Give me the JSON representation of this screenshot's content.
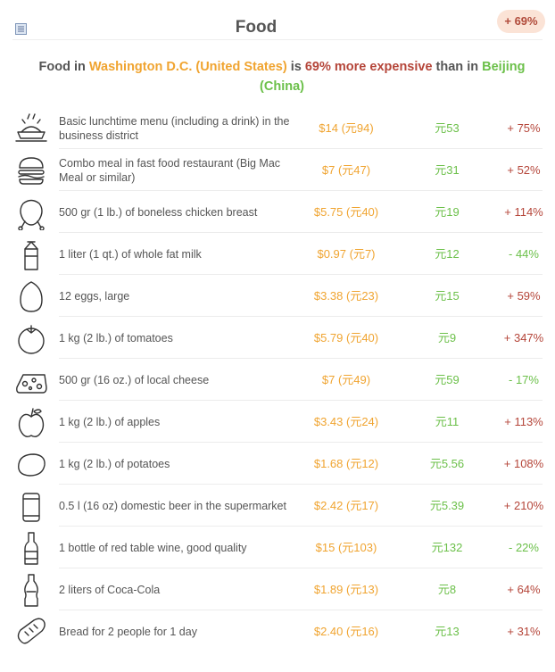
{
  "header": {
    "title": "Food",
    "badge": "+ 69%",
    "menu_icon": "list-icon"
  },
  "summary": {
    "prefix": "Food in ",
    "city1": "Washington D.C. (United States)",
    "mid1": " is ",
    "pct": "69% more expensive",
    "mid2": " than in ",
    "city2": "Beijing (China)"
  },
  "colors": {
    "orange": "#f0a430",
    "green": "#6cc04a",
    "red": "#b5463a",
    "badge_bg": "#fbe3d6"
  },
  "items": [
    {
      "icon": "meal-plate-icon",
      "label": "Basic lunchtime menu (including a drink) in the business district",
      "price": "$14 (元94)",
      "local": "元53",
      "diff": "+ 75%",
      "dir": "up"
    },
    {
      "icon": "burger-icon",
      "label": "Combo meal in fast food restaurant (Big Mac Meal or similar)",
      "price": "$7 (元47)",
      "local": "元31",
      "diff": "+ 52%",
      "dir": "up"
    },
    {
      "icon": "chicken-icon",
      "label": "500 gr (1 lb.) of boneless chicken breast",
      "price": "$5.75 (元40)",
      "local": "元19",
      "diff": "+ 114%",
      "dir": "up"
    },
    {
      "icon": "milk-carton-icon",
      "label": "1 liter (1 qt.) of whole fat milk",
      "price": "$0.97 (元7)",
      "local": "元12",
      "diff": "- 44%",
      "dir": "down"
    },
    {
      "icon": "egg-icon",
      "label": "12 eggs, large",
      "price": "$3.38 (元23)",
      "local": "元15",
      "diff": "+ 59%",
      "dir": "up"
    },
    {
      "icon": "tomato-icon",
      "label": "1 kg (2 lb.) of tomatoes",
      "price": "$5.79 (元40)",
      "local": "元9",
      "diff": "+ 347%",
      "dir": "up"
    },
    {
      "icon": "cheese-icon",
      "label": "500 gr (16 oz.) of local cheese",
      "price": "$7 (元49)",
      "local": "元59",
      "diff": "- 17%",
      "dir": "down"
    },
    {
      "icon": "apple-icon",
      "label": "1 kg (2 lb.) of apples",
      "price": "$3.43 (元24)",
      "local": "元11",
      "diff": "+ 113%",
      "dir": "up"
    },
    {
      "icon": "potato-icon",
      "label": "1 kg (2 lb.) of potatoes",
      "price": "$1.68 (元12)",
      "local": "元5.56",
      "diff": "+ 108%",
      "dir": "up"
    },
    {
      "icon": "beer-can-icon",
      "label": "0.5 l (16 oz) domestic beer in the supermarket",
      "price": "$2.42 (元17)",
      "local": "元5.39",
      "diff": "+ 210%",
      "dir": "up"
    },
    {
      "icon": "wine-bottle-icon",
      "label": "1 bottle of red table wine, good quality",
      "price": "$15 (元103)",
      "local": "元132",
      "diff": "- 22%",
      "dir": "down"
    },
    {
      "icon": "soda-bottle-icon",
      "label": "2 liters of Coca-Cola",
      "price": "$1.89 (元13)",
      "local": "元8",
      "diff": "+ 64%",
      "dir": "up"
    },
    {
      "icon": "bread-icon",
      "label": "Bread for 2 people for 1 day",
      "price": "$2.40 (元16)",
      "local": "元13",
      "diff": "+ 31%",
      "dir": "up"
    }
  ]
}
